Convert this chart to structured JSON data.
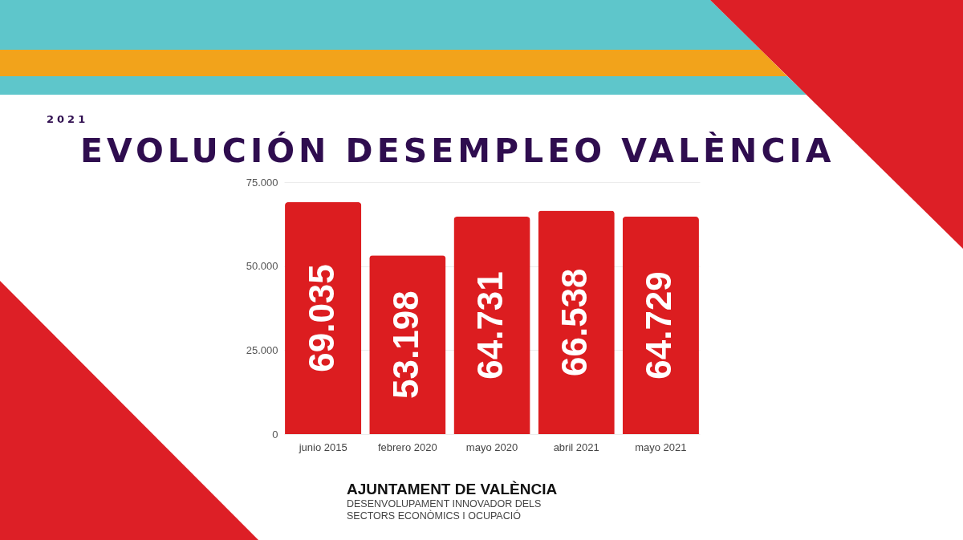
{
  "chart_data": {
    "type": "bar",
    "title": "EVOLUCIÓN DESEMPLEO VALÈNCIA",
    "subtitle": "2021",
    "categories": [
      "junio 2015",
      "febrero 2020",
      "mayo 2020",
      "abril 2021",
      "mayo 2021"
    ],
    "values": [
      69035,
      53198,
      64731,
      66538,
      64729
    ],
    "value_labels": [
      "69.035",
      "53.198",
      "64.731",
      "66.538",
      "64.729"
    ],
    "color": "#dc1d20",
    "ylim": [
      0,
      75000
    ],
    "yticks": [
      0,
      {
        "value": 25000,
        "label": "25.000"
      },
      {
        "value": 50000,
        "label": "50.000"
      },
      {
        "value": 75000,
        "label": "75.000"
      }
    ],
    "grid": "y",
    "annotations": [
      "AJUNTAMENT DE VALÈNCIA",
      "DESENVOLUPAMENT INNOVADOR DELS",
      "SECTORS ECONÒMICS I OCUPACIÓ"
    ]
  }
}
